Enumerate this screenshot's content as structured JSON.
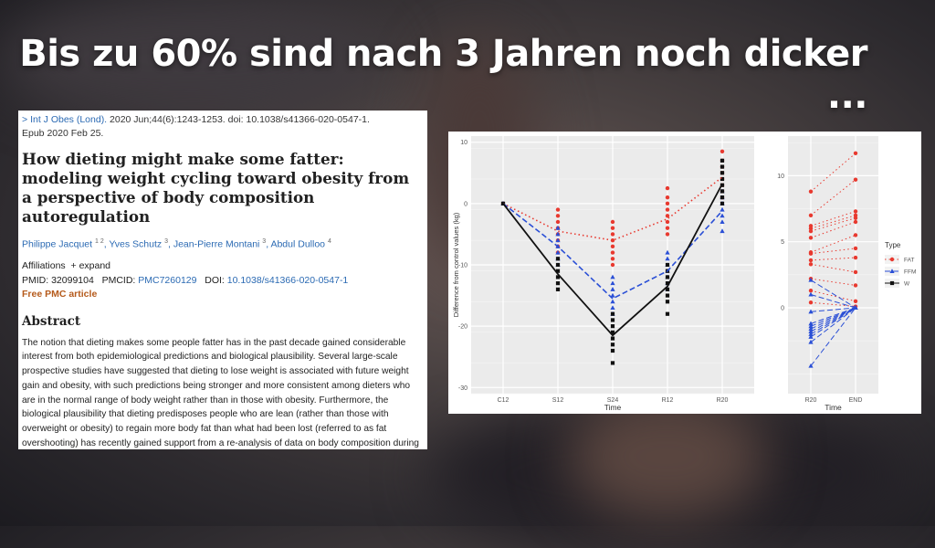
{
  "headline": "Bis zu 60% sind nach 3 Jahren noch dicker ...",
  "paper": {
    "citation_arrow": ">",
    "journal": "Int J Obes (Lond).",
    "citation_rest": "2020 Jun;44(6):1243-1253. doi: 10.1038/s41366-020-0547-1.",
    "epub": "Epub 2020 Feb 25.",
    "title": "How dieting might make some fatter: modeling weight cycling toward obesity from a perspective of body composition autoregulation",
    "authors": [
      {
        "name": "Philippe Jacquet",
        "sup": "1 2"
      },
      {
        "name": "Yves Schutz",
        "sup": "3"
      },
      {
        "name": "Jean-Pierre Montani",
        "sup": "3"
      },
      {
        "name": "Abdul Dulloo",
        "sup": "4"
      }
    ],
    "affiliations_label": "Affiliations",
    "expand_label": "+ expand",
    "pmid_label": "PMID:",
    "pmid": "32099104",
    "pmcid_label": "PMCID:",
    "pmcid": "PMC7260129",
    "doi_label": "DOI:",
    "doi": "10.1038/s41366-020-0547-1",
    "free_pmc": "Free PMC article",
    "abstract_heading": "Abstract",
    "abstract_text": "The notion that dieting makes some people fatter has in the past decade gained considerable interest from both epidemiological predictions and biological plausibility. Several large-scale prospective studies have suggested that dieting to lose weight is associated with future weight gain and obesity, with such predictions being stronger and more consistent among dieters who are in the normal range of body weight rather than in those with obesity. Furthermore, the biological plausibility that dieting predisposes people who are lean (rather than those with overweight or obesity) to regain more body fat than what had been lost (referred to as fat overshooting) has recently gained support from a re-analysis of data on body composition during weight loss and subsequent weight recovery from the classic longitudinal Minnesota Starvation Experiment. These"
  },
  "chart_data": [
    {
      "type": "line",
      "xlabel": "Time",
      "ylabel": "Difference from control values (kg)",
      "categories": [
        "C12",
        "S12",
        "S24",
        "R12",
        "R20"
      ],
      "yticks": [
        10,
        0,
        -10,
        -20,
        -30
      ],
      "ylim": [
        -31,
        11
      ],
      "series": [
        {
          "name": "FAT",
          "color": "#e8392f",
          "mean": [
            0,
            -4.5,
            -6,
            -2.5,
            4.3
          ],
          "points": [
            [
              0
            ],
            [
              -1,
              -2,
              -3,
              -4,
              -5,
              -6,
              -7,
              -8
            ],
            [
              -3,
              -4,
              -5,
              -6,
              -7,
              -8,
              -9,
              -10
            ],
            [
              2.5,
              1,
              0,
              -1,
              -2,
              -3,
              -4,
              -5
            ],
            [
              8.5,
              7,
              6,
              5,
              4,
              3,
              2,
              1
            ]
          ]
        },
        {
          "name": "FFM",
          "color": "#2a4fd6",
          "mean": [
            0,
            -7,
            -15.5,
            -11,
            -1.2
          ],
          "points": [
            [
              0
            ],
            [
              -4,
              -5,
              -6,
              -7,
              -8,
              -9,
              -10
            ],
            [
              -12,
              -13,
              -14,
              -15,
              -16,
              -17,
              -18
            ],
            [
              -8,
              -9,
              -10,
              -11,
              -12,
              -13,
              -14
            ],
            [
              -4.5,
              -3,
              -2,
              -1,
              0,
              1,
              2
            ]
          ]
        },
        {
          "name": "W",
          "color": "#111111",
          "mean": [
            0,
            -11.5,
            -21.5,
            -13.5,
            3.2
          ],
          "points": [
            [
              0
            ],
            [
              -9,
              -10,
              -11,
              -12,
              -13,
              -14
            ],
            [
              -18,
              -19,
              -20,
              -21,
              -22,
              -23,
              -24,
              -26
            ],
            [
              -10,
              -11,
              -12,
              -13,
              -14,
              -15,
              -16,
              -18
            ],
            [
              0,
              1,
              2,
              3,
              4,
              5,
              6,
              7
            ]
          ]
        }
      ]
    },
    {
      "type": "line",
      "xlabel": "Time",
      "categories": [
        "R20",
        "END"
      ],
      "yticks": [
        10,
        5,
        0
      ],
      "ylim": [
        -6.5,
        13
      ],
      "legend_title": "Type",
      "legend": [
        {
          "name": "FAT",
          "color": "#e8392f",
          "marker": "circle"
        },
        {
          "name": "FFM",
          "color": "#2a4fd6",
          "marker": "triangle"
        },
        {
          "name": "W",
          "color": "#111111",
          "marker": "square"
        }
      ],
      "series": [
        {
          "name": "FAT",
          "color": "#e8392f",
          "pairs": [
            [
              8.8,
              11.7
            ],
            [
              7,
              9.7
            ],
            [
              6.2,
              7.3
            ],
            [
              6,
              7
            ],
            [
              5.8,
              6.8
            ],
            [
              5.3,
              6.5
            ],
            [
              4.2,
              5.5
            ],
            [
              4.1,
              4.5
            ],
            [
              3.6,
              3.8
            ],
            [
              3.3,
              2.7
            ],
            [
              2.2,
              1.7
            ],
            [
              1.3,
              0.5
            ],
            [
              0.4,
              0.1
            ]
          ]
        },
        {
          "name": "FFM",
          "color": "#2a4fd6",
          "pairs": [
            [
              2.1,
              0
            ],
            [
              1,
              0
            ],
            [
              -0.3,
              0
            ],
            [
              -1.2,
              0
            ],
            [
              -1.4,
              0
            ],
            [
              -1.6,
              0
            ],
            [
              -1.8,
              0
            ],
            [
              -2,
              0
            ],
            [
              -2.2,
              0
            ],
            [
              -2.6,
              0
            ],
            [
              -4.4,
              0
            ]
          ]
        }
      ]
    }
  ]
}
